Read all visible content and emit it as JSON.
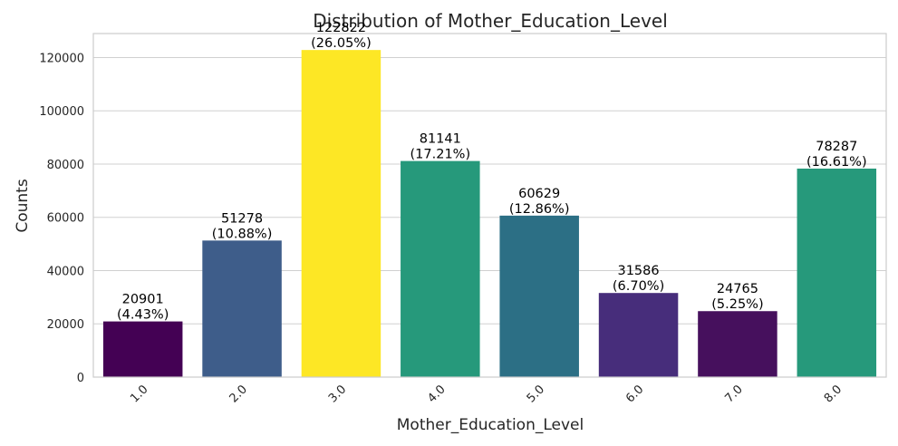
{
  "chart_data": {
    "type": "bar",
    "title": "Distribution of Mother_Education_Level",
    "xlabel": "Mother_Education_Level",
    "ylabel": "Counts",
    "categories": [
      "1.0",
      "2.0",
      "3.0",
      "4.0",
      "5.0",
      "6.0",
      "7.0",
      "8.0"
    ],
    "values": [
      20901,
      51278,
      122822,
      81141,
      60629,
      31586,
      24765,
      78287
    ],
    "percent_labels": [
      "(4.43%)",
      "(10.88%)",
      "(26.05%)",
      "(17.21%)",
      "(12.86%)",
      "(6.70%)",
      "(5.25%)",
      "(16.61%)"
    ],
    "colors": [
      "#440154",
      "#3e5d8a",
      "#fde725",
      "#26997b",
      "#2c6f85",
      "#472d7b",
      "#46105d",
      "#26997b"
    ],
    "yticks": [
      "0",
      "20000",
      "40000",
      "60000",
      "80000",
      "100000",
      "120000"
    ],
    "ylim": [
      0,
      129000
    ],
    "grid": true
  }
}
